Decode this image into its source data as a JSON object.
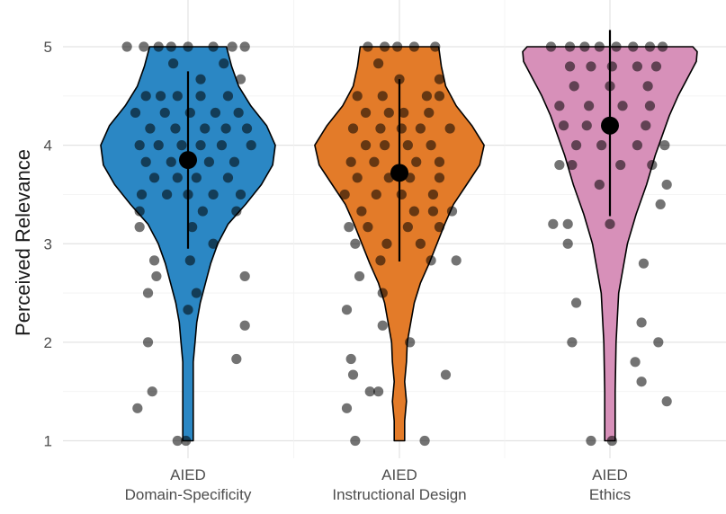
{
  "chart_data": {
    "type": "violin",
    "title": "",
    "xlabel": "",
    "ylabel": "Perceived Relevance",
    "ylim": [
      1,
      5
    ],
    "yticks": [
      "1",
      "2",
      "3",
      "4",
      "5"
    ],
    "grid": true,
    "categories": [
      {
        "lines": [
          "AIED",
          "Domain-Specificity"
        ],
        "color": "#2b87c4"
      },
      {
        "lines": [
          "AIED",
          "Instructional Design"
        ],
        "color": "#e37b29"
      },
      {
        "lines": [
          "AIED",
          "Ethics"
        ],
        "color": "#d790b9"
      }
    ],
    "summary": [
      {
        "mean": 3.85,
        "lower": 2.95,
        "upper": 4.75
      },
      {
        "mean": 3.72,
        "lower": 2.82,
        "upper": 4.67
      },
      {
        "mean": 4.2,
        "lower": 3.28,
        "upper": 5.17
      }
    ],
    "violins": [
      {
        "density": [
          [
            1.0,
            0.06
          ],
          [
            1.2,
            0.06
          ],
          [
            1.5,
            0.06
          ],
          [
            1.8,
            0.06
          ],
          [
            2.0,
            0.08
          ],
          [
            2.2,
            0.1
          ],
          [
            2.4,
            0.14
          ],
          [
            2.6,
            0.2
          ],
          [
            2.8,
            0.26
          ],
          [
            3.0,
            0.34
          ],
          [
            3.2,
            0.46
          ],
          [
            3.4,
            0.66
          ],
          [
            3.6,
            0.84
          ],
          [
            3.8,
            0.97
          ],
          [
            4.0,
            1.0
          ],
          [
            4.2,
            0.9
          ],
          [
            4.4,
            0.72
          ],
          [
            4.6,
            0.58
          ],
          [
            4.8,
            0.5
          ],
          [
            5.0,
            0.44
          ]
        ]
      },
      {
        "density": [
          [
            1.0,
            0.06
          ],
          [
            1.2,
            0.06
          ],
          [
            1.4,
            0.08
          ],
          [
            1.6,
            0.06
          ],
          [
            1.8,
            0.08
          ],
          [
            2.0,
            0.09
          ],
          [
            2.2,
            0.13
          ],
          [
            2.4,
            0.17
          ],
          [
            2.6,
            0.24
          ],
          [
            2.8,
            0.34
          ],
          [
            3.0,
            0.43
          ],
          [
            3.2,
            0.52
          ],
          [
            3.4,
            0.62
          ],
          [
            3.6,
            0.77
          ],
          [
            3.8,
            0.92
          ],
          [
            4.0,
            0.97
          ],
          [
            4.2,
            0.83
          ],
          [
            4.4,
            0.65
          ],
          [
            4.6,
            0.53
          ],
          [
            4.8,
            0.48
          ],
          [
            5.0,
            0.45
          ]
        ]
      },
      {
        "density": [
          [
            1.0,
            0.06
          ],
          [
            1.5,
            0.06
          ],
          [
            2.0,
            0.07
          ],
          [
            2.5,
            0.1
          ],
          [
            3.0,
            0.2
          ],
          [
            3.3,
            0.3
          ],
          [
            3.6,
            0.42
          ],
          [
            3.9,
            0.52
          ],
          [
            4.1,
            0.6
          ],
          [
            4.3,
            0.68
          ],
          [
            4.5,
            0.78
          ],
          [
            4.7,
            0.9
          ],
          [
            4.85,
            0.99
          ],
          [
            4.95,
            1.0
          ],
          [
            5.0,
            0.95
          ]
        ]
      }
    ],
    "points": [
      [
        [
          -0.29,
          5.0
        ],
        [
          -0.21,
          5.0
        ],
        [
          -0.14,
          5.0
        ],
        [
          -0.08,
          5.0
        ],
        [
          0.0,
          5.0
        ],
        [
          0.12,
          5.0
        ],
        [
          0.21,
          5.0
        ],
        [
          0.27,
          5.0
        ],
        [
          -0.07,
          4.83
        ],
        [
          0.17,
          4.83
        ],
        [
          0.06,
          4.67
        ],
        [
          0.25,
          4.67
        ],
        [
          -0.2,
          4.5
        ],
        [
          -0.13,
          4.5
        ],
        [
          -0.05,
          4.5
        ],
        [
          0.06,
          4.5
        ],
        [
          0.19,
          4.5
        ],
        [
          -0.25,
          4.33
        ],
        [
          -0.11,
          4.33
        ],
        [
          0.01,
          4.33
        ],
        [
          0.13,
          4.33
        ],
        [
          0.24,
          4.33
        ],
        [
          -0.18,
          4.17
        ],
        [
          -0.06,
          4.17
        ],
        [
          0.08,
          4.17
        ],
        [
          0.18,
          4.17
        ],
        [
          0.28,
          4.17
        ],
        [
          -0.23,
          4.0
        ],
        [
          -0.14,
          4.0
        ],
        [
          -0.03,
          4.0
        ],
        [
          0.06,
          4.0
        ],
        [
          0.16,
          4.0
        ],
        [
          0.3,
          4.0
        ],
        [
          -0.2,
          3.83
        ],
        [
          -0.08,
          3.83
        ],
        [
          0.1,
          3.83
        ],
        [
          0.22,
          3.83
        ],
        [
          -0.16,
          3.67
        ],
        [
          -0.05,
          3.67
        ],
        [
          0.04,
          3.67
        ],
        [
          0.19,
          3.67
        ],
        [
          -0.22,
          3.5
        ],
        [
          -0.1,
          3.5
        ],
        [
          0.0,
          3.5
        ],
        [
          0.12,
          3.5
        ],
        [
          0.25,
          3.5
        ],
        [
          -0.23,
          3.33
        ],
        [
          0.07,
          3.33
        ],
        [
          0.23,
          3.33
        ],
        [
          -0.23,
          3.17
        ],
        [
          0.02,
          3.17
        ],
        [
          0.12,
          3.0
        ],
        [
          -0.16,
          2.83
        ],
        [
          0.01,
          2.83
        ],
        [
          -0.15,
          2.67
        ],
        [
          0.27,
          2.67
        ],
        [
          -0.19,
          2.5
        ],
        [
          0.04,
          2.5
        ],
        [
          0.0,
          2.33
        ],
        [
          0.27,
          2.17
        ],
        [
          -0.19,
          2.0
        ],
        [
          0.23,
          1.83
        ],
        [
          -0.17,
          1.5
        ],
        [
          -0.24,
          1.33
        ],
        [
          -0.05,
          1.0
        ],
        [
          -0.01,
          1.0
        ]
      ],
      [
        [
          -0.15,
          5.0
        ],
        [
          -0.07,
          5.0
        ],
        [
          -0.01,
          5.0
        ],
        [
          0.07,
          5.0
        ],
        [
          0.17,
          5.0
        ],
        [
          -0.1,
          4.83
        ],
        [
          0.0,
          4.67
        ],
        [
          0.19,
          4.67
        ],
        [
          -0.2,
          4.5
        ],
        [
          -0.08,
          4.5
        ],
        [
          0.13,
          4.5
        ],
        [
          0.19,
          4.5
        ],
        [
          -0.16,
          4.33
        ],
        [
          -0.05,
          4.33
        ],
        [
          0.02,
          4.33
        ],
        [
          0.14,
          4.33
        ],
        [
          -0.22,
          4.17
        ],
        [
          -0.09,
          4.17
        ],
        [
          0.01,
          4.17
        ],
        [
          0.1,
          4.17
        ],
        [
          0.24,
          4.17
        ],
        [
          -0.16,
          4.0
        ],
        [
          -0.07,
          4.0
        ],
        [
          0.04,
          4.0
        ],
        [
          0.15,
          4.0
        ],
        [
          -0.23,
          3.83
        ],
        [
          -0.12,
          3.83
        ],
        [
          0.08,
          3.83
        ],
        [
          0.19,
          3.83
        ],
        [
          -0.2,
          3.67
        ],
        [
          -0.05,
          3.67
        ],
        [
          0.05,
          3.67
        ],
        [
          0.19,
          3.67
        ],
        [
          -0.26,
          3.5
        ],
        [
          -0.11,
          3.5
        ],
        [
          0.01,
          3.5
        ],
        [
          0.16,
          3.5
        ],
        [
          -0.18,
          3.33
        ],
        [
          0.07,
          3.33
        ],
        [
          0.16,
          3.33
        ],
        [
          0.25,
          3.33
        ],
        [
          -0.24,
          3.17
        ],
        [
          -0.15,
          3.17
        ],
        [
          0.04,
          3.17
        ],
        [
          0.19,
          3.17
        ],
        [
          -0.21,
          3.0
        ],
        [
          -0.06,
          3.0
        ],
        [
          0.1,
          3.0
        ],
        [
          -0.09,
          2.83
        ],
        [
          0.15,
          2.83
        ],
        [
          0.27,
          2.83
        ],
        [
          -0.19,
          2.67
        ],
        [
          -0.08,
          2.5
        ],
        [
          -0.25,
          2.33
        ],
        [
          -0.08,
          2.17
        ],
        [
          0.05,
          2.0
        ],
        [
          -0.23,
          1.83
        ],
        [
          -0.22,
          1.67
        ],
        [
          0.22,
          1.67
        ],
        [
          -0.14,
          1.5
        ],
        [
          -0.1,
          1.5
        ],
        [
          -0.25,
          1.33
        ],
        [
          -0.21,
          1.0
        ],
        [
          0.12,
          1.0
        ]
      ],
      [
        [
          -0.28,
          5.0
        ],
        [
          -0.19,
          5.0
        ],
        [
          -0.12,
          5.0
        ],
        [
          -0.05,
          5.0
        ],
        [
          0.03,
          5.0
        ],
        [
          0.11,
          5.0
        ],
        [
          0.19,
          5.0
        ],
        [
          0.25,
          5.0
        ],
        [
          -0.19,
          4.8
        ],
        [
          -0.09,
          4.8
        ],
        [
          0.01,
          4.8
        ],
        [
          0.13,
          4.8
        ],
        [
          0.22,
          4.8
        ],
        [
          -0.17,
          4.6
        ],
        [
          0.0,
          4.6
        ],
        [
          0.18,
          4.6
        ],
        [
          -0.24,
          4.4
        ],
        [
          -0.1,
          4.4
        ],
        [
          0.06,
          4.4
        ],
        [
          0.19,
          4.4
        ],
        [
          -0.22,
          4.2
        ],
        [
          -0.11,
          4.2
        ],
        [
          0.17,
          4.2
        ],
        [
          -0.16,
          4.0
        ],
        [
          -0.04,
          4.0
        ],
        [
          0.13,
          4.0
        ],
        [
          0.26,
          4.0
        ],
        [
          -0.24,
          3.8
        ],
        [
          -0.18,
          3.8
        ],
        [
          0.05,
          3.8
        ],
        [
          0.2,
          3.8
        ],
        [
          -0.05,
          3.6
        ],
        [
          0.27,
          3.6
        ],
        [
          0.24,
          3.4
        ],
        [
          -0.27,
          3.2
        ],
        [
          -0.2,
          3.2
        ],
        [
          0.0,
          3.2
        ],
        [
          -0.2,
          3.0
        ],
        [
          0.16,
          2.8
        ],
        [
          -0.16,
          2.4
        ],
        [
          0.15,
          2.2
        ],
        [
          -0.18,
          2.0
        ],
        [
          0.23,
          2.0
        ],
        [
          0.12,
          1.8
        ],
        [
          0.15,
          1.6
        ],
        [
          0.27,
          1.4
        ],
        [
          -0.09,
          1.0
        ],
        [
          0.01,
          1.0
        ]
      ]
    ]
  }
}
